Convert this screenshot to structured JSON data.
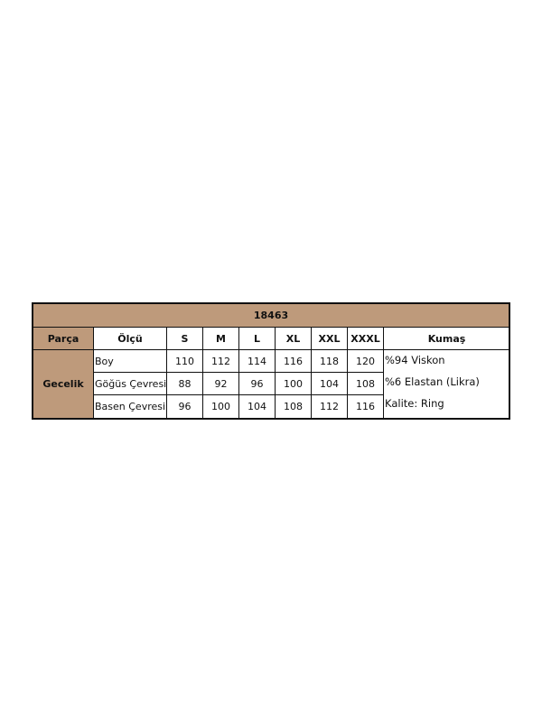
{
  "title": "18463",
  "headers": [
    "Parça",
    "Ölçü",
    "S",
    "M",
    "L",
    "XL",
    "XXL",
    "XXXL",
    "Kumaş"
  ],
  "part": "Gecelik",
  "rows": [
    {
      "label": "Boy",
      "values": [
        "110",
        "112",
        "114",
        "116",
        "118",
        "120"
      ]
    },
    {
      "label": "Göğüs Çevresi",
      "values": [
        "88",
        "92",
        "96",
        "100",
        "104",
        "108"
      ]
    },
    {
      "label": "Basen Çevresi",
      "values": [
        "96",
        "100",
        "104",
        "108",
        "112",
        "116"
      ]
    }
  ],
  "fabric": [
    "%94 Viskon",
    "%6 Elastan (Likra)",
    "Kalite: Ring"
  ],
  "colors": {
    "header_bg": "#be9a7b"
  }
}
